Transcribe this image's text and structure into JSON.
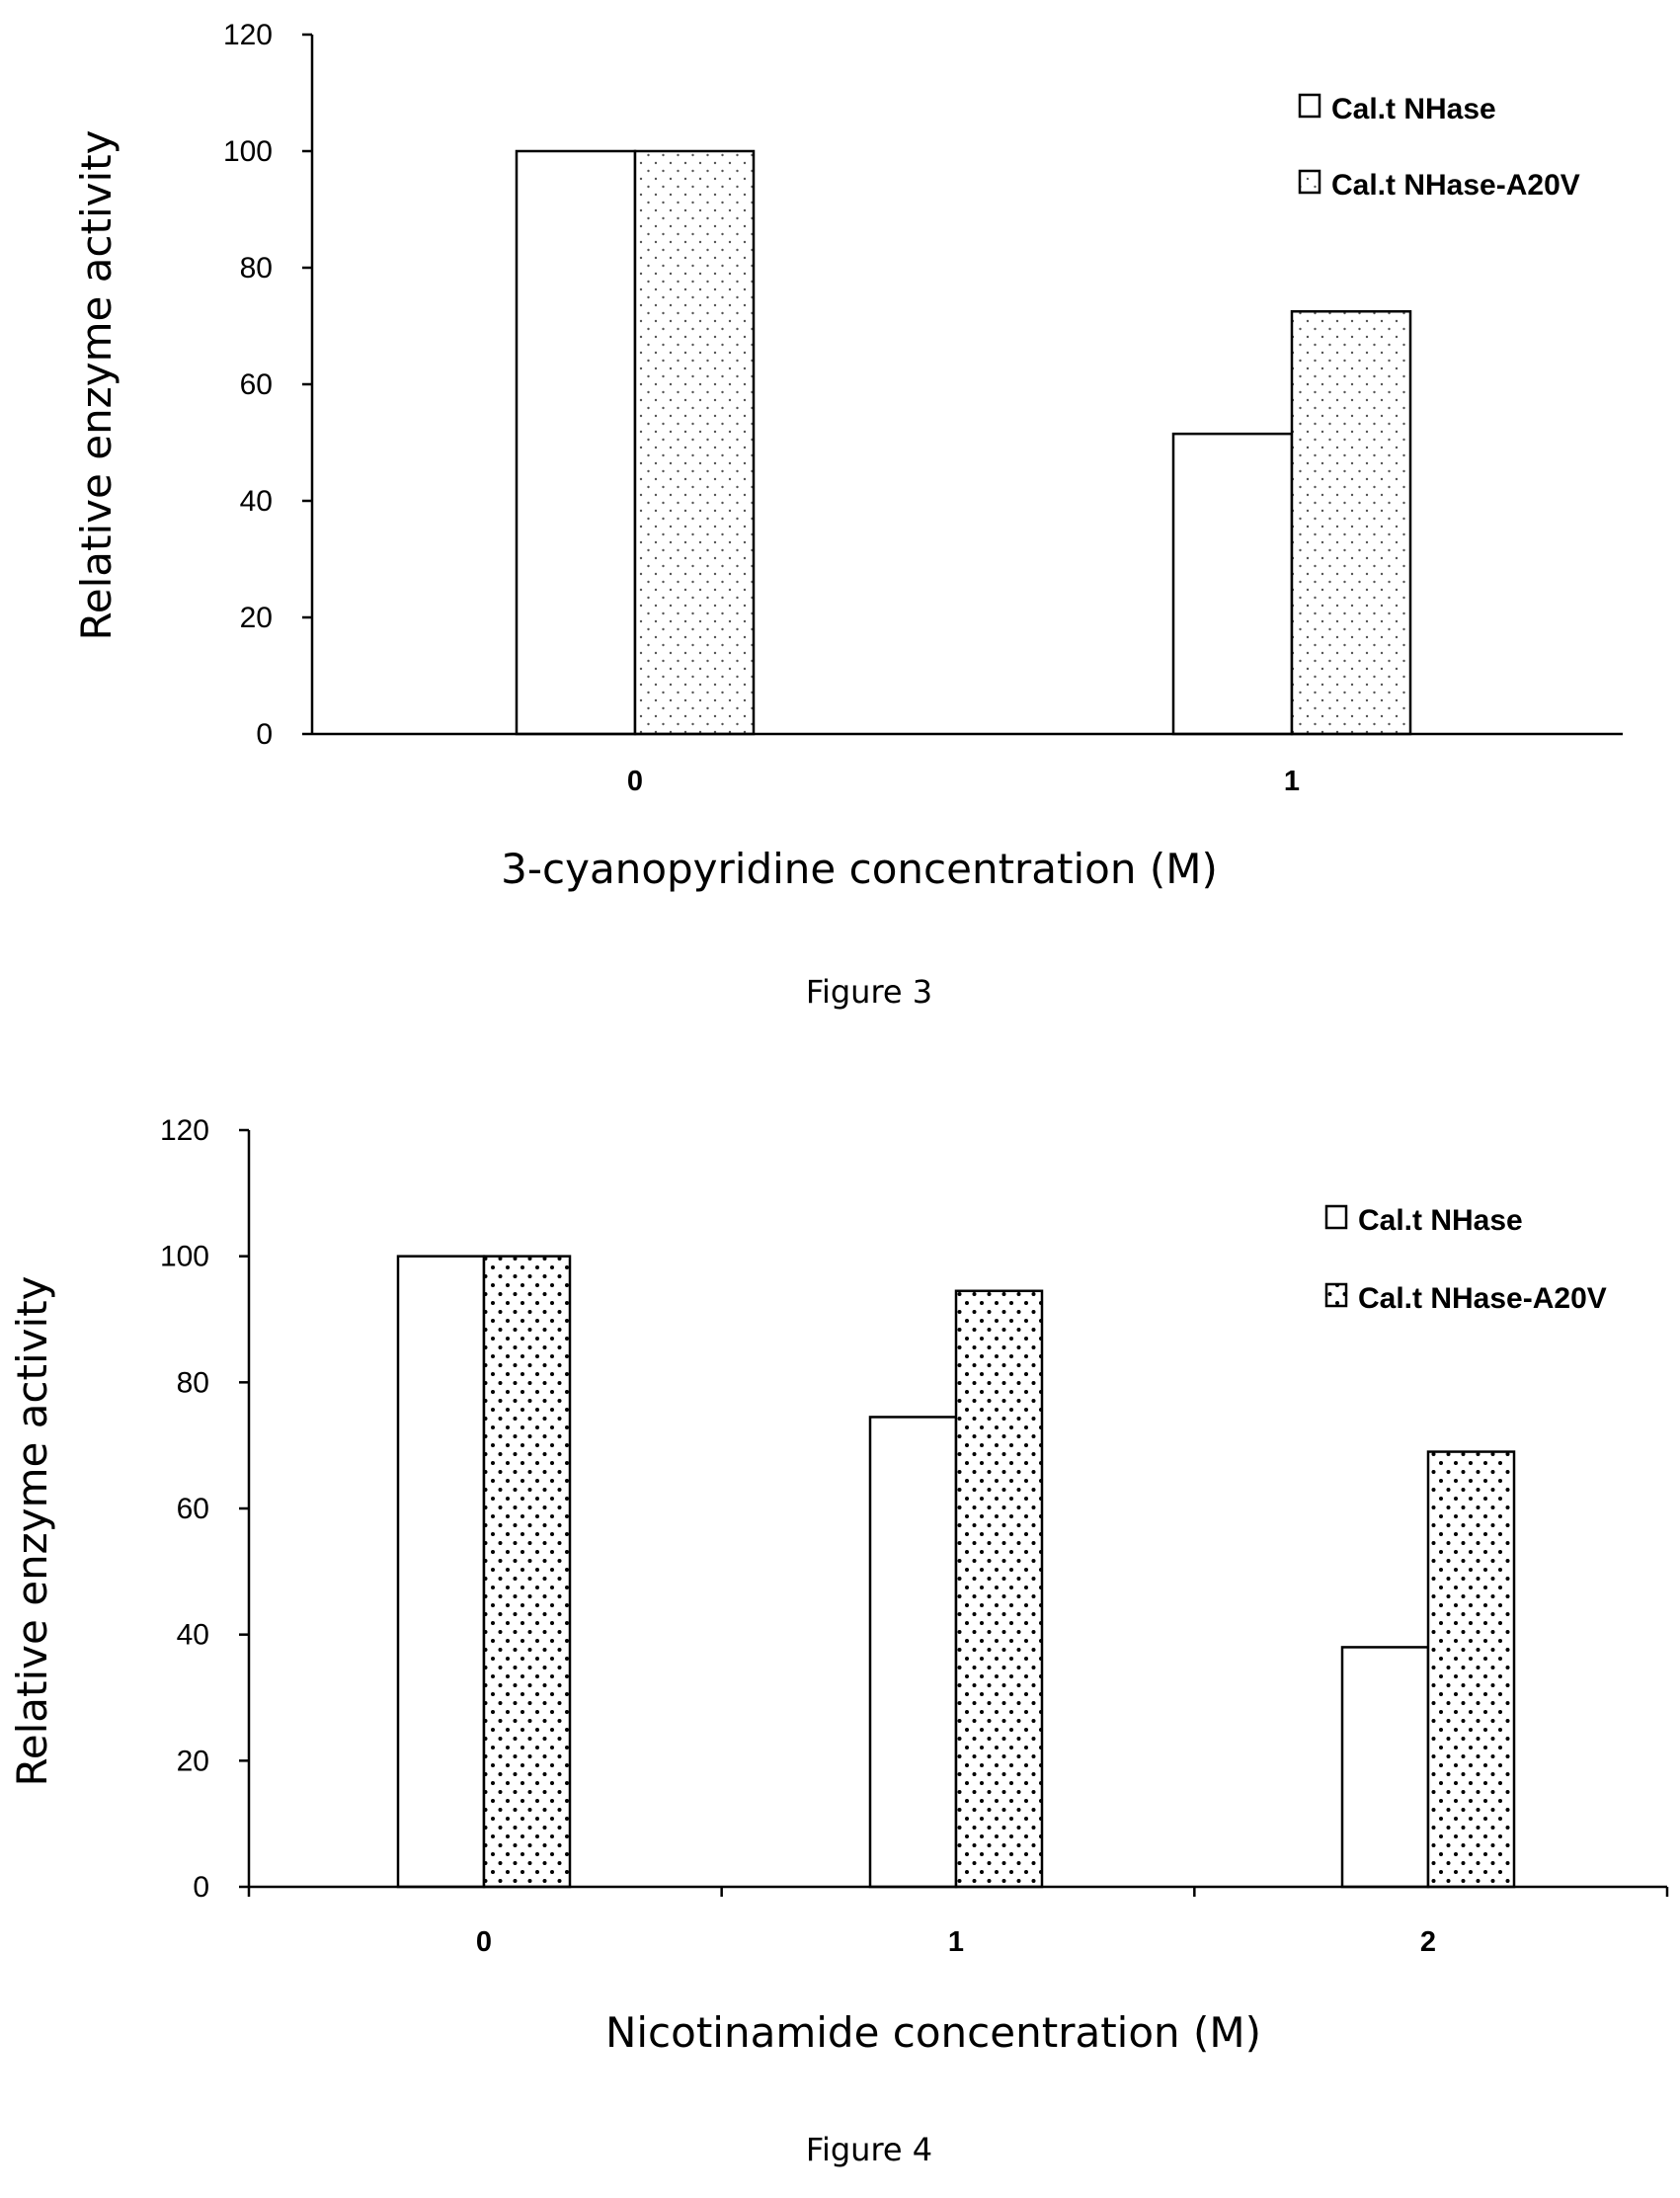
{
  "chart_data": [
    {
      "type": "bar",
      "xlabel": "3-cyanopyridine concentration (M)",
      "ylabel": "Relative enzyme activity",
      "caption": "Figure 3",
      "categories": [
        "0",
        "1"
      ],
      "yticks": [
        "0",
        "20",
        "40",
        "60",
        "80",
        "100",
        "120"
      ],
      "ylim": [
        0,
        120
      ],
      "grid": false,
      "legend_position": "top-right",
      "series": [
        {
          "name": "Cal.t NHase",
          "values": [
            100,
            51.5
          ],
          "fill": "blank"
        },
        {
          "name": "Cal.t NHase-A20V",
          "values": [
            100,
            72.5
          ],
          "fill": "dotted"
        }
      ]
    },
    {
      "type": "bar",
      "xlabel": "Nicotinamide concentration (M)",
      "ylabel": "Relative enzyme activity",
      "caption": "Figure 4",
      "categories": [
        "0",
        "1",
        "2"
      ],
      "yticks": [
        "0",
        "20",
        "40",
        "60",
        "80",
        "100",
        "120"
      ],
      "ylim": [
        0,
        120
      ],
      "grid": false,
      "legend_position": "top-right",
      "series": [
        {
          "name": "Cal.t NHase",
          "values": [
            100,
            74.5,
            38
          ],
          "fill": "blank"
        },
        {
          "name": "Cal.t NHase-A20V",
          "values": [
            100,
            94.5,
            69
          ],
          "fill": "dotted"
        }
      ]
    }
  ]
}
